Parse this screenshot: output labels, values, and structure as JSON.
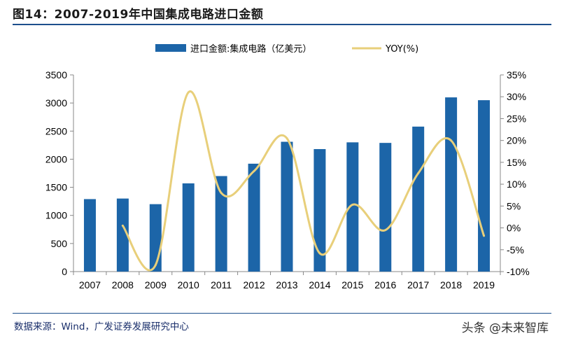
{
  "header": {
    "title": "图14：2007-2019年中国集成电路进口金额"
  },
  "footer": {
    "source": "数据来源：Wind，广发证券发展研究中心",
    "watermark": "头条 @未来智库"
  },
  "chart_data": {
    "type": "bar",
    "title": "",
    "categories": [
      "2007",
      "2008",
      "2009",
      "2010",
      "2011",
      "2012",
      "2013",
      "2014",
      "2015",
      "2016",
      "2017",
      "2018",
      "2019"
    ],
    "series": [
      {
        "name": "进口金额:集成电路（亿美元）",
        "type": "bar",
        "axis": "left",
        "values": [
          1290,
          1300,
          1200,
          1570,
          1700,
          1920,
          2310,
          2180,
          2300,
          2290,
          2580,
          3100,
          3050
        ]
      },
      {
        "name": "YOY(%)",
        "type": "line",
        "axis": "right",
        "values": [
          null,
          0.5,
          -8.5,
          31,
          8,
          13,
          20.5,
          -5.8,
          5.3,
          -0.5,
          12.5,
          20,
          -1.8
        ]
      }
    ],
    "yleft": {
      "min": 0,
      "max": 3500,
      "step": 500
    },
    "yright": {
      "min": -10,
      "max": 35,
      "step": 5,
      "unit": "%"
    },
    "legend_position": "top-center",
    "grid": false,
    "colors": {
      "bar": "#1c65a8",
      "line": "#e8cf7a"
    }
  }
}
